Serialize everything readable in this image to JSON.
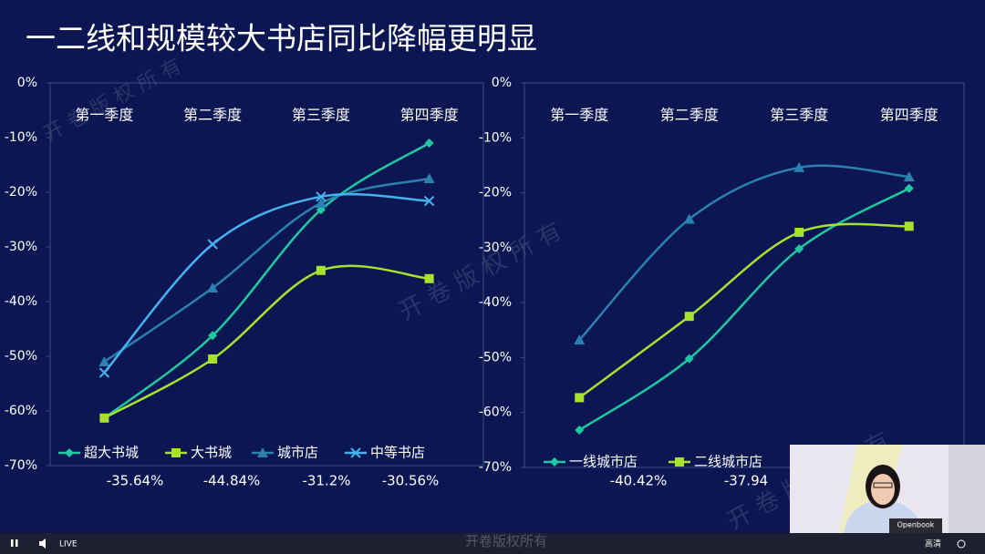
{
  "header": {
    "title": "一二线和规模较大书店同比降幅更明显"
  },
  "chart_data": [
    {
      "type": "line",
      "categories": [
        "第一季度",
        "第二季度",
        "第三季度",
        "第四季度"
      ],
      "ylim": [
        -70,
        0
      ],
      "yticks": [
        {
          "value": 0,
          "label": "0%"
        },
        {
          "value": -10,
          "label": "-10%"
        },
        {
          "value": -20,
          "label": "-20%"
        },
        {
          "value": -30,
          "label": "-30%"
        },
        {
          "value": -40,
          "label": "-40%"
        },
        {
          "value": -50,
          "label": "-50%"
        },
        {
          "value": -60,
          "label": "-60%"
        },
        {
          "value": -70,
          "label": "-70%"
        }
      ],
      "series": [
        {
          "name": "超大书城",
          "color": "#1ec8a0",
          "marker": "diamond",
          "values": [
            -61.3,
            -46.2,
            -23.2,
            -11
          ],
          "note": "-35.64%"
        },
        {
          "name": "大书城",
          "color": "#a6e22e",
          "marker": "square",
          "values": [
            -61.3,
            -50.5,
            -34.3,
            -35.8
          ],
          "note": "-44.84%"
        },
        {
          "name": "城市店",
          "color": "#2b80ae",
          "marker": "triangle",
          "values": [
            -51,
            -37.5,
            -22,
            -17.5
          ],
          "note": "-31.2%"
        },
        {
          "name": "中等书店",
          "color": "#45b2ee",
          "marker": "x",
          "values": [
            -53,
            -29.5,
            -20.8,
            -21.6
          ],
          "note": "-30.56%"
        }
      ]
    },
    {
      "type": "line",
      "categories": [
        "第一季度",
        "第二季度",
        "第三季度",
        "第四季度"
      ],
      "ylim": [
        -70,
        0
      ],
      "yticks": [
        {
          "value": 0,
          "label": "0%"
        },
        {
          "value": -10,
          "label": "-10%"
        },
        {
          "value": -20,
          "label": "-20%"
        },
        {
          "value": -30,
          "label": "-30%"
        },
        {
          "value": -40,
          "label": "-40%"
        },
        {
          "value": -50,
          "label": "-50%"
        },
        {
          "value": -60,
          "label": "-60%"
        },
        {
          "value": -70,
          "label": "-70%"
        }
      ],
      "series": [
        {
          "name": "一线城市店",
          "color": "#1ec8a0",
          "marker": "diamond",
          "values": [
            -63.2,
            -50.2,
            -30.2,
            -19.2
          ],
          "note": "-40.42%"
        },
        {
          "name": "二线城市店",
          "color": "#a6e22e",
          "marker": "square",
          "values": [
            -57.3,
            -42.5,
            -27.2,
            -26.1
          ],
          "note": "-37.94"
        },
        {
          "color": "#2b80ae",
          "marker": "triangle",
          "values": [
            -46.8,
            -24.8,
            -15.4,
            -17.1
          ]
        }
      ]
    }
  ],
  "watermark": "开 卷 版 权 所 有",
  "footer_watermark": "开卷版权所有",
  "player": {
    "live": "LIVE",
    "quality": "高清"
  },
  "webcam": {
    "label": "Openbook"
  }
}
